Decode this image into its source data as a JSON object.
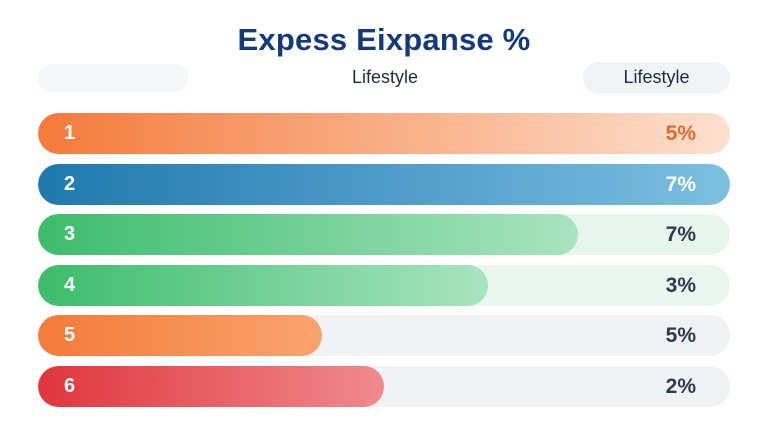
{
  "chart_data": {
    "type": "bar",
    "title": "Expess Eixpanse %",
    "column_label": "Lifestyle",
    "right_header": "Lifestyle",
    "categories": [
      "1",
      "2",
      "3",
      "4",
      "5",
      "6"
    ],
    "values": [
      5,
      7,
      7,
      3,
      5,
      2
    ],
    "value_labels": [
      "5%",
      "7%",
      "7%",
      "3%",
      "5%",
      "2%"
    ],
    "bar_fill_fraction": [
      1.0,
      1.0,
      0.78,
      0.65,
      0.41,
      0.5
    ],
    "colors": [
      {
        "start": "#f47a3a",
        "end": "#fde0cf",
        "track": "#fde7da",
        "label": "#e06a2c"
      },
      {
        "start": "#1f78ad",
        "end": "#7cbfe2",
        "track": "#cfe6f3",
        "label": "#ffffff"
      },
      {
        "start": "#3cbc6c",
        "end": "#a9e4c0",
        "track": "#e6f6ec",
        "label": "#2d3a4f"
      },
      {
        "start": "#3cbc6c",
        "end": "#a9e4c0",
        "track": "#eaf6ee",
        "label": "#2d3a4f"
      },
      {
        "start": "#f47a3a",
        "end": "#f9a46d",
        "track": "#f0f2f4",
        "label": "#2d3a4f"
      },
      {
        "start": "#e0353c",
        "end": "#f08a8e",
        "track": "#f0f2f4",
        "label": "#2d3a4f"
      }
    ]
  }
}
